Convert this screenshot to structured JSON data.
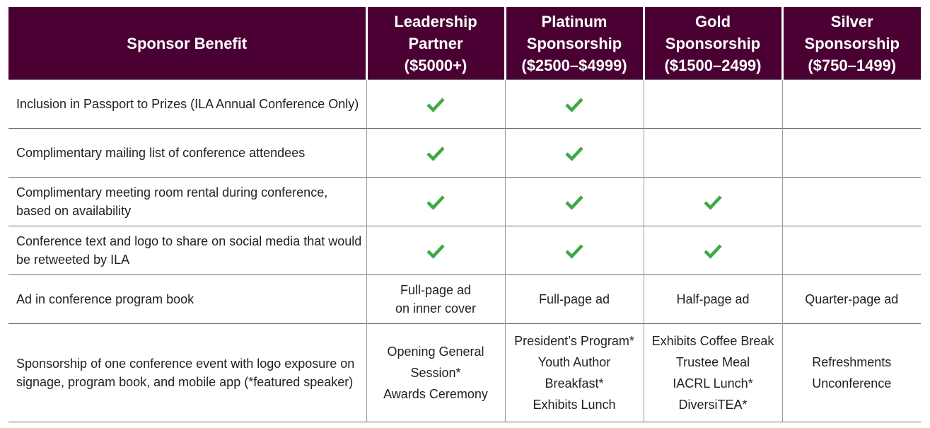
{
  "columns": {
    "benefit": "Sponsor Benefit",
    "leadership": {
      "line1": "Leadership",
      "line2": "Partner",
      "price": "($5000+)"
    },
    "platinum": {
      "line1": "Platinum",
      "line2": "Sponsorship",
      "price": "($2500–$4999)"
    },
    "gold": {
      "line1": "Gold",
      "line2": "Sponsorship",
      "price": "($1500–2499)"
    },
    "silver": {
      "line1": "Silver",
      "line2": "Sponsorship",
      "price": "($750–1499)"
    }
  },
  "rows": [
    {
      "benefit": "Inclusion in Passport to Prizes (ILA Annual Conference Only)",
      "leadership": true,
      "platinum": true,
      "gold": false,
      "silver": false
    },
    {
      "benefit": "Complimentary mailing list of conference attendees",
      "leadership": true,
      "platinum": true,
      "gold": false,
      "silver": false
    },
    {
      "benefit_line1": "Complimentary meeting room rental during conference,",
      "benefit_line2": "based on availability",
      "leadership": true,
      "platinum": true,
      "gold": true,
      "silver": false
    },
    {
      "benefit_line1": "Conference text and logo to share on social media that would",
      "benefit_line2": "be retweeted by ILA",
      "leadership": true,
      "platinum": true,
      "gold": true,
      "silver": false
    },
    {
      "benefit": "Ad in conference program book",
      "leadership_line1": "Full-page ad",
      "leadership_line2": "on inner cover",
      "platinum": "Full-page ad",
      "gold": "Half-page ad",
      "silver": "Quarter-page ad"
    },
    {
      "benefit_line1": "Sponsorship of one conference event with logo exposure on",
      "benefit_line2": "signage, program book, and mobile app (*featured speaker)",
      "leadership": [
        [
          "Opening General",
          "Session*"
        ],
        [
          "Awards Ceremony"
        ]
      ],
      "platinum": [
        [
          "President’s Program*"
        ],
        [
          "Youth Author",
          "Breakfast*"
        ],
        [
          "Exhibits Lunch"
        ]
      ],
      "gold": [
        [
          "Exhibits Coffee Break"
        ],
        [
          "Trustee Meal"
        ],
        [
          "IACRL Lunch*"
        ],
        [
          "DiversiTEA*"
        ]
      ],
      "silver": [
        [
          "Refreshments",
          "Unconference"
        ]
      ]
    }
  ],
  "colors": {
    "header_bg": "#4b0034",
    "header_text": "#ffffff",
    "check": "#3daa48",
    "body_text": "#231f20"
  },
  "icons": {
    "check": "checkmark-icon"
  }
}
